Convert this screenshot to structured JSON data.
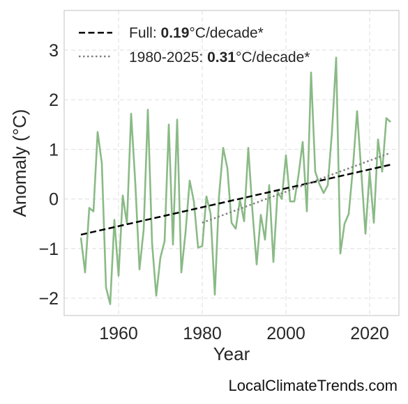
{
  "chart_data": {
    "type": "line",
    "xlabel": "Year",
    "ylabel": "Anomaly (°C)",
    "xlim": [
      1947,
      2027
    ],
    "ylim": [
      -2.35,
      3.8
    ],
    "x_ticks": [
      1960,
      1980,
      2000,
      2020
    ],
    "y_ticks": [
      -2,
      -1,
      0,
      1,
      2,
      3
    ],
    "y_tick_labels": [
      "−2",
      "−1",
      "0",
      "1",
      "2",
      "3"
    ],
    "grid": true,
    "legend_position": "top-left",
    "series": [
      {
        "color": "#8aba86",
        "x": [
          1951,
          1952,
          1953,
          1954,
          1955,
          1956,
          1957,
          1958,
          1959,
          1960,
          1961,
          1962,
          1963,
          1964,
          1965,
          1966,
          1967,
          1968,
          1969,
          1970,
          1971,
          1972,
          1973,
          1974,
          1975,
          1976,
          1977,
          1978,
          1979,
          1980,
          1981,
          1982,
          1983,
          1984,
          1985,
          1986,
          1987,
          1988,
          1989,
          1990,
          1991,
          1992,
          1993,
          1994,
          1995,
          1996,
          1997,
          1998,
          1999,
          2000,
          2001,
          2002,
          2003,
          2004,
          2005,
          2006,
          2007,
          2008,
          2009,
          2010,
          2011,
          2012,
          2013,
          2014,
          2015,
          2016,
          2017,
          2018,
          2019,
          2020,
          2021,
          2022,
          2023,
          2024,
          2025
        ],
        "values": [
          -0.78,
          -1.48,
          -0.18,
          -0.25,
          1.35,
          0.72,
          -1.78,
          -2.12,
          -0.42,
          -1.55,
          0.07,
          -0.5,
          1.72,
          0.32,
          -1.42,
          -0.62,
          1.8,
          -0.88,
          -1.95,
          -1.18,
          -0.85,
          1.5,
          -0.92,
          1.6,
          -1.48,
          -0.68,
          0.37,
          -0.05,
          -0.98,
          -0.95,
          0.05,
          -0.3,
          -1.93,
          0.05,
          1.03,
          0.62,
          -0.48,
          -0.6,
          -0.02,
          -0.45,
          1.03,
          -0.25,
          -1.32,
          -0.32,
          -0.82,
          0.28,
          -1.27,
          0.15,
          0.0,
          0.88,
          -0.05,
          -0.05,
          0.48,
          1.15,
          -0.25,
          2.55,
          0.55,
          0.3,
          0.12,
          0.28,
          1.35,
          2.85,
          -1.1,
          -0.5,
          -0.3,
          0.62,
          1.77,
          0.55,
          -0.7,
          0.55,
          -0.48,
          1.2,
          0.55,
          1.63,
          1.55
        ]
      },
      {
        "name": "Full",
        "style": "dashed",
        "color": "#000000",
        "x": [
          1951,
          2025
        ],
        "values": [
          -0.72,
          0.69
        ]
      },
      {
        "name": "1980-2025",
        "style": "dotted",
        "color": "#808080",
        "x": [
          1980,
          2025
        ],
        "values": [
          -0.48,
          0.93
        ]
      }
    ]
  },
  "legend": {
    "full_prefix": "Full: ",
    "full_value": "0.19",
    "full_suffix": "°C/decade*",
    "recent_prefix": "1980-2025: ",
    "recent_value": "0.31",
    "recent_suffix": "°C/decade*"
  },
  "credit": "LocalClimateTrends.com"
}
